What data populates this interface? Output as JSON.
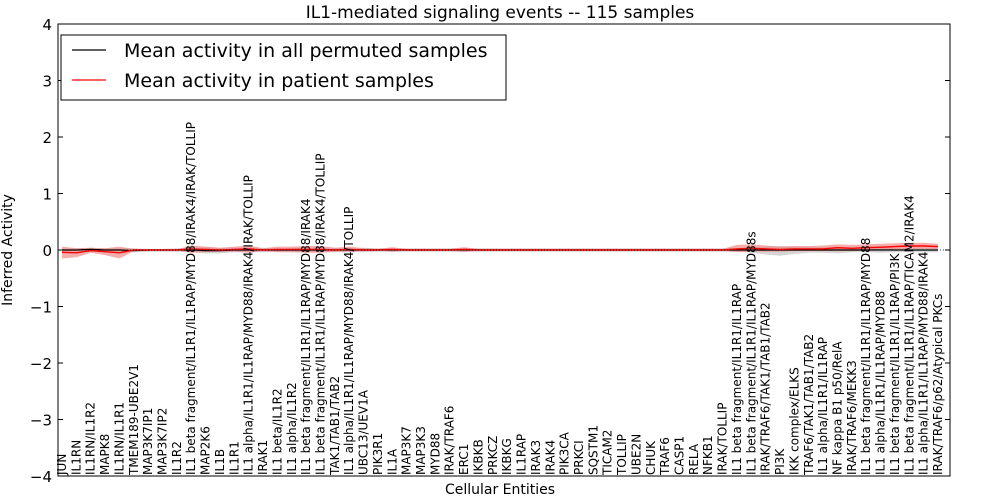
{
  "chart_data": {
    "type": "line",
    "title": "IL1-mediated signaling events -- 115 samples",
    "xlabel": "Cellular Entities",
    "ylabel": "Inferred Activity",
    "ylim": [
      -4,
      4
    ],
    "yticks": [
      -4,
      -3,
      -2,
      -1,
      0,
      1,
      2,
      3,
      4
    ],
    "legend": {
      "position": "top-left",
      "entries": [
        {
          "label": "Mean activity in all permuted samples",
          "color": "#000000"
        },
        {
          "label": "Mean activity in patient samples",
          "color": "#ff0000"
        }
      ]
    },
    "categories": [
      "JUN",
      "IL1RN",
      "IL1RN/IL1R2",
      "MAPK8",
      "IL1RN/IL1R1",
      "TMEM189-UBE2V1",
      "MAP3K7IP1",
      "MAP3K7IP2",
      "IL1R2",
      "IL1 beta fragment/IL1R1/IL1RAP/MYD88/IRAK4/IRAK/TOLLIP",
      "MAP2K6",
      "IL1B",
      "IL1R1",
      "IL1 alpha/IL1R1/IL1RAP/MYD88/IRAK4/IRAK/TOLLIP",
      "IRAK1",
      "IL1 beta/IL1R2",
      "IL1 alpha/IL1R2",
      "IL1 beta fragment/IL1R1/IL1RAP/MYD88/IRAK4",
      "IL1 beta fragment/IL1R1/IL1RAP/MYD88/IRAK4/TOLLIP",
      "TAK1/TAB1/TAB2",
      "IL1 alpha/IL1R1/IL1RAP/MYD88/IRAK4/TOLLIP",
      "UBC13/UEV1A",
      "PIK3R1",
      "IL1A",
      "MAP3K7",
      "MAP3K3",
      "MYD88",
      "IRAK/TRAF6",
      "ERC1",
      "IKBKB",
      "PRKCZ",
      "IKBKG",
      "IL1RAP",
      "IRAK3",
      "IRAK4",
      "PIK3CA",
      "PRKCI",
      "SQSTM1",
      "TICAM2",
      "TOLLIP",
      "UBE2N",
      "CHUK",
      "TRAF6",
      "CASP1",
      "RELA",
      "NFKB1",
      "IRAK/TOLLIP",
      "IL1 beta fragment/IL1R1/IL1RAP",
      "IL1 beta fragment/IL1R1/IL1RAP/MYD88s",
      "IRAK/TRAF6/TAK1/TAB1/TAB2",
      "PI3K",
      "IKK complex/ELKS",
      "TRAF6/TAK1/TAB1/TAB2",
      "IL1 alpha/IL1R1/IL1RAP",
      "NF kappa B1 p50/RelA",
      "IRAK/TRAF6/MEKK3",
      "IL1 beta fragment/IL1R1/IL1RAP/MYD88",
      "IL1 alpha/IL1R1/IL1RAP/MYD88",
      "IL1 beta fragment/IL1R1/IL1RAP/PI3K",
      "IL1 beta fragment/IL1R1/IL1RAP/TICAM2/IRAK4",
      "IL1 alpha/IL1R1/IL1RAP/MYD88/IRAK4",
      "IRAK/TRAF6/p62/Atypical PKCs"
    ],
    "series": [
      {
        "name": "Mean activity in all permuted samples",
        "color": "#000000",
        "band_color": "#b3b3b3",
        "values": [
          0.0,
          0.0,
          0.01,
          0.0,
          0.0,
          -0.01,
          0.0,
          0.0,
          0.0,
          0.0,
          -0.01,
          -0.01,
          0.0,
          0.0,
          0.0,
          0.0,
          0.0,
          0.0,
          0.0,
          0.0,
          0.0,
          0.0,
          0.0,
          0.0,
          0.0,
          0.0,
          0.0,
          0.0,
          0.0,
          0.0,
          0.0,
          0.0,
          0.0,
          0.0,
          0.0,
          0.0,
          0.0,
          0.0,
          0.0,
          0.0,
          0.0,
          0.0,
          0.0,
          0.0,
          0.0,
          0.0,
          0.0,
          0.0,
          0.0,
          0.0,
          0.0,
          0.0,
          0.0,
          0.0,
          0.0,
          0.0,
          0.0,
          0.0,
          0.0,
          0.0,
          0.0,
          0.0
        ],
        "lower": [
          -0.02,
          -0.03,
          -0.03,
          -0.02,
          -0.03,
          -0.04,
          -0.03,
          -0.03,
          -0.03,
          -0.04,
          -0.06,
          -0.06,
          -0.04,
          -0.04,
          -0.04,
          -0.03,
          -0.03,
          -0.04,
          -0.04,
          -0.04,
          -0.04,
          -0.04,
          -0.03,
          -0.03,
          -0.03,
          -0.03,
          -0.03,
          -0.03,
          -0.04,
          -0.03,
          -0.03,
          -0.03,
          -0.03,
          -0.03,
          -0.03,
          -0.03,
          -0.03,
          -0.03,
          -0.03,
          -0.03,
          -0.03,
          -0.03,
          -0.03,
          -0.03,
          -0.03,
          -0.03,
          -0.03,
          -0.03,
          -0.05,
          -0.08,
          -0.1,
          -0.07,
          -0.05,
          -0.05,
          -0.06,
          -0.04,
          -0.04,
          -0.05,
          -0.04,
          -0.04,
          -0.04,
          -0.04
        ],
        "upper": [
          0.02,
          0.03,
          0.04,
          0.03,
          0.03,
          0.03,
          0.02,
          0.02,
          0.03,
          0.04,
          0.05,
          0.04,
          0.04,
          0.04,
          0.04,
          0.03,
          0.03,
          0.04,
          0.04,
          0.04,
          0.04,
          0.04,
          0.03,
          0.03,
          0.03,
          0.03,
          0.03,
          0.03,
          0.04,
          0.03,
          0.03,
          0.03,
          0.03,
          0.03,
          0.03,
          0.03,
          0.03,
          0.03,
          0.03,
          0.03,
          0.03,
          0.03,
          0.03,
          0.03,
          0.03,
          0.03,
          0.03,
          0.03,
          0.05,
          0.06,
          0.07,
          0.06,
          0.05,
          0.05,
          0.06,
          0.04,
          0.04,
          0.05,
          0.04,
          0.04,
          0.04,
          0.04
        ]
      },
      {
        "name": "Mean activity in patient samples",
        "color": "#ff0000",
        "band_color": "#f08080",
        "values": [
          -0.04,
          -0.05,
          -0.01,
          -0.03,
          -0.05,
          0.0,
          0.0,
          0.0,
          0.0,
          0.02,
          0.01,
          0.0,
          0.01,
          0.02,
          0.0,
          0.01,
          0.01,
          0.01,
          0.01,
          0.0,
          0.01,
          0.0,
          0.0,
          0.01,
          0.0,
          0.0,
          0.0,
          0.0,
          0.01,
          0.0,
          0.0,
          0.0,
          0.0,
          0.0,
          0.0,
          0.0,
          0.0,
          0.0,
          0.0,
          0.0,
          0.0,
          0.0,
          0.0,
          0.0,
          0.0,
          0.0,
          0.0,
          0.02,
          0.03,
          0.02,
          0.01,
          0.02,
          0.02,
          0.02,
          0.04,
          0.03,
          0.04,
          0.05,
          0.06,
          0.07,
          0.07,
          0.06
        ],
        "lower": [
          -0.15,
          -0.13,
          -0.05,
          -0.09,
          -0.15,
          -0.02,
          -0.01,
          -0.01,
          -0.01,
          -0.05,
          -0.04,
          -0.03,
          -0.03,
          -0.05,
          -0.02,
          -0.04,
          -0.04,
          -0.05,
          -0.05,
          -0.03,
          -0.03,
          -0.02,
          -0.01,
          -0.03,
          -0.01,
          -0.01,
          -0.01,
          -0.01,
          -0.03,
          -0.01,
          -0.01,
          -0.01,
          -0.01,
          -0.01,
          -0.01,
          -0.01,
          -0.01,
          -0.01,
          -0.01,
          -0.01,
          -0.01,
          -0.01,
          -0.01,
          -0.01,
          -0.01,
          -0.01,
          -0.01,
          -0.04,
          -0.03,
          -0.03,
          -0.03,
          -0.02,
          -0.02,
          -0.02,
          -0.02,
          -0.02,
          -0.01,
          0.0,
          0.01,
          0.02,
          0.02,
          0.02
        ],
        "upper": [
          0.06,
          0.03,
          0.04,
          0.03,
          0.06,
          0.02,
          0.01,
          0.01,
          0.01,
          0.08,
          0.06,
          0.04,
          0.06,
          0.08,
          0.03,
          0.06,
          0.06,
          0.07,
          0.07,
          0.04,
          0.06,
          0.03,
          0.02,
          0.05,
          0.02,
          0.02,
          0.02,
          0.02,
          0.05,
          0.02,
          0.02,
          0.02,
          0.02,
          0.02,
          0.02,
          0.02,
          0.02,
          0.02,
          0.02,
          0.02,
          0.02,
          0.02,
          0.02,
          0.02,
          0.02,
          0.02,
          0.02,
          0.09,
          0.1,
          0.08,
          0.06,
          0.07,
          0.07,
          0.08,
          0.1,
          0.09,
          0.1,
          0.11,
          0.12,
          0.13,
          0.13,
          0.11
        ]
      }
    ]
  }
}
